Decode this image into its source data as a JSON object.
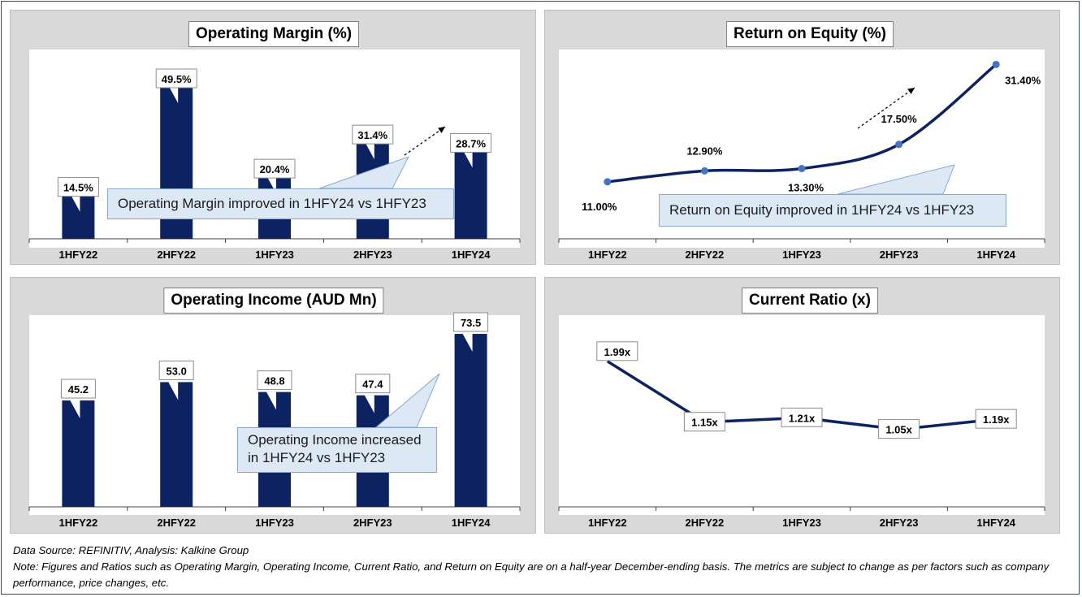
{
  "footer": {
    "source": "Data Source: REFINITIV, Analysis: Kalkine Group",
    "note": "Note: Figures and Ratios such as Operating Margin, Operating Income, Current Ratio, and Return on Equity are on a half-year December-ending basis. The metrics are subject to change as per factors such as company performance, price changes, etc."
  },
  "colors": {
    "bar": "#0d2260",
    "line": "#0d2260",
    "marker": "#4472c4",
    "panel_bg": "#d9d9d9",
    "callout_bg": "#dce9f5"
  },
  "chart_data": [
    {
      "id": "op-margin",
      "type": "bar",
      "title": "Operating Margin (%)",
      "categories": [
        "1HFY22",
        "2HFY22",
        "1HFY23",
        "2HFY23",
        "1HFY24"
      ],
      "values": [
        14.5,
        49.5,
        20.4,
        31.4,
        28.7
      ],
      "labels": [
        "14.5%",
        "49.5%",
        "20.4%",
        "31.4%",
        "28.7%"
      ],
      "ylim": [
        0,
        55
      ],
      "callout": "Operating Margin improved in 1HFY24 vs 1HFY23"
    },
    {
      "id": "roe",
      "type": "line",
      "title": "Return on Equity (%)",
      "categories": [
        "1HFY22",
        "2HFY22",
        "1HFY23",
        "2HFY23",
        "1HFY24"
      ],
      "values": [
        11.0,
        12.9,
        13.3,
        17.5,
        31.4
      ],
      "labels": [
        "11.00%",
        "12.90%",
        "13.30%",
        "17.50%",
        "31.40%"
      ],
      "ylim": [
        0,
        35
      ],
      "callout": "Return on Equity improved in 1HFY24 vs 1HFY23"
    },
    {
      "id": "op-income",
      "type": "bar",
      "title": "Operating Income (AUD Mn)",
      "categories": [
        "1HFY22",
        "2HFY22",
        "1HFY23",
        "2HFY23",
        "1HFY24"
      ],
      "values": [
        45.2,
        53.0,
        48.8,
        47.4,
        73.5
      ],
      "labels": [
        "45.2",
        "53.0",
        "48.8",
        "47.4",
        "73.5"
      ],
      "ylim": [
        0,
        78
      ],
      "callout": "Operating Income increased in 1HFY24 vs 1HFY23"
    },
    {
      "id": "current-ratio",
      "type": "line",
      "title": "Current Ratio (x)",
      "categories": [
        "1HFY22",
        "2HFY22",
        "1HFY23",
        "2HFY23",
        "1HFY24"
      ],
      "values": [
        1.99,
        1.15,
        1.21,
        1.05,
        1.19
      ],
      "labels": [
        "1.99x",
        "1.15x",
        "1.21x",
        "1.05x",
        "1.19x"
      ],
      "ylim": [
        0,
        2.2
      ],
      "callout": ""
    }
  ]
}
